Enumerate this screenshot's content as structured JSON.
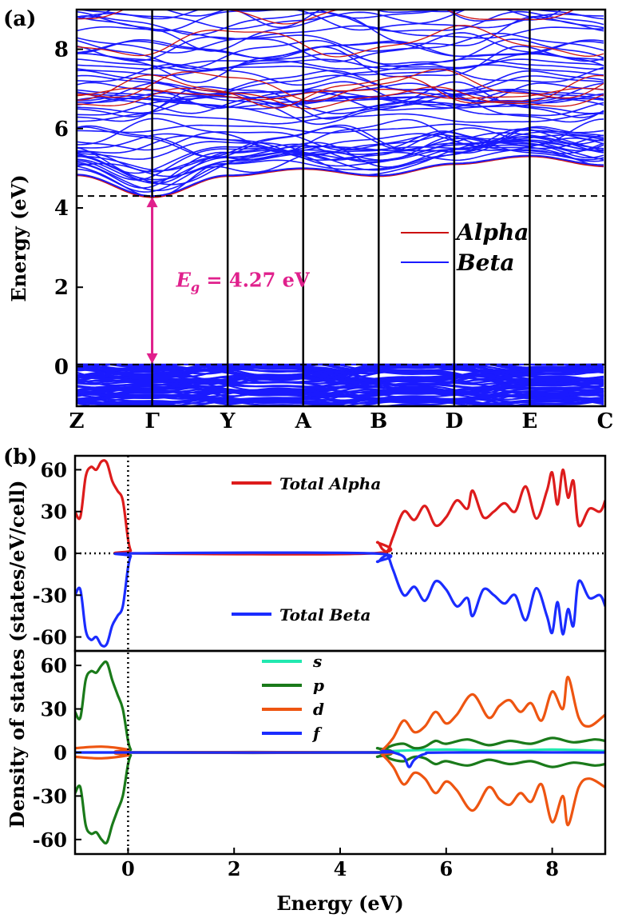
{
  "chart_data": [
    {
      "panel_label": "(a)",
      "type": "line",
      "subtype": "band-structure",
      "ylabel": "Energy (eV)",
      "ylim": [
        -1.0,
        9.0
      ],
      "y_ticks": [
        0,
        2,
        4,
        6,
        8
      ],
      "k_points": [
        "Z",
        "Γ",
        "Y",
        "A",
        "B",
        "D",
        "E",
        "C"
      ],
      "legend": [
        {
          "name": "Alpha",
          "color": "#cc1111"
        },
        {
          "name": "Beta",
          "color": "#1a1aff"
        }
      ],
      "gap": {
        "label_symbol": "E",
        "label_subscript": "g",
        "label_value": " = 4.27 eV",
        "value": 4.27,
        "vbm": 0.05,
        "cbm": 4.3,
        "k_location": "Γ",
        "color": "#e0208c"
      },
      "series": [
        {
          "name": "Alpha",
          "description": "conduction band minimum branch",
          "x": [
            0,
            1,
            2,
            3,
            4,
            5,
            6,
            7
          ],
          "values": [
            4.82,
            4.27,
            4.8,
            4.98,
            4.8,
            5.1,
            5.3,
            5.05
          ]
        },
        {
          "name": "Beta",
          "description": "conduction band minimum branch",
          "x": [
            0,
            1,
            2,
            3,
            4,
            5,
            6,
            7
          ],
          "values": [
            4.84,
            4.3,
            4.82,
            5.0,
            4.82,
            5.12,
            5.32,
            5.08
          ]
        }
      ]
    },
    {
      "panel_label": "(b)",
      "type": "line",
      "subtype": "density-of-states",
      "xlabel": "Energy (eV)",
      "ylabel": "Density of states (states/eV/cell)",
      "xlim": [
        -1.0,
        9.0
      ],
      "x_ticks": [
        0,
        2,
        4,
        6,
        8
      ],
      "subplots": [
        {
          "name": "total",
          "ylim": [
            -70,
            70
          ],
          "y_ticks": [
            -60,
            -30,
            0,
            30,
            60
          ],
          "series": [
            {
              "name": "Total Alpha",
              "color": "#dd1c1c",
              "x": [
                -1.0,
                -0.9,
                -0.8,
                -0.7,
                -0.6,
                -0.5,
                -0.4,
                -0.3,
                -0.2,
                -0.1,
                0.0,
                0.05,
                0.1,
                4.6,
                4.7,
                4.8,
                4.9,
                5.0,
                5.2,
                5.4,
                5.6,
                5.8,
                6.0,
                6.2,
                6.4,
                6.5,
                6.7,
                6.9,
                7.1,
                7.3,
                7.5,
                7.7,
                7.9,
                8.0,
                8.1,
                8.2,
                8.3,
                8.4,
                8.5,
                8.7,
                8.9,
                9.0
              ],
              "values": [
                30,
                26,
                55,
                62,
                60,
                66,
                65,
                52,
                45,
                38,
                10,
                2,
                0,
                0,
                8,
                3,
                2,
                12,
                30,
                24,
                34,
                20,
                26,
                38,
                32,
                45,
                26,
                30,
                36,
                30,
                48,
                25,
                45,
                58,
                35,
                60,
                40,
                52,
                20,
                32,
                30,
                38
              ]
            },
            {
              "name": "Total Beta",
              "color": "#1a2cff",
              "x": [
                -1.0,
                -0.9,
                -0.8,
                -0.7,
                -0.6,
                -0.5,
                -0.4,
                -0.3,
                -0.2,
                -0.1,
                0.0,
                0.05,
                0.1,
                4.6,
                4.7,
                4.8,
                4.9,
                5.0,
                5.2,
                5.4,
                5.6,
                5.8,
                6.0,
                6.2,
                6.4,
                6.5,
                6.7,
                6.9,
                7.1,
                7.3,
                7.5,
                7.7,
                7.9,
                8.0,
                8.1,
                8.2,
                8.3,
                8.4,
                8.5,
                8.7,
                8.9,
                9.0
              ],
              "values": [
                -30,
                -26,
                -55,
                -62,
                -60,
                -66,
                -65,
                -52,
                -45,
                -38,
                -10,
                -2,
                0,
                0,
                -6,
                -3,
                -2,
                -12,
                -30,
                -24,
                -34,
                -20,
                -26,
                -38,
                -32,
                -45,
                -26,
                -30,
                -36,
                -30,
                -48,
                -25,
                -45,
                -57,
                -35,
                -58,
                -40,
                -52,
                -20,
                -32,
                -30,
                -38
              ]
            }
          ]
        },
        {
          "name": "partial",
          "ylim": [
            -70,
            70
          ],
          "y_ticks": [
            -60,
            -30,
            0,
            30,
            60
          ],
          "series": [
            {
              "name": "s",
              "color": "#22e8b0",
              "x": [
                -1.0,
                0.0,
                4.7,
                5.0,
                6.0,
                7.0,
                8.0,
                9.0
              ],
              "values": [
                0,
                0,
                0,
                1,
                2,
                1,
                2,
                1
              ]
            },
            {
              "name": "p",
              "color": "#1a7a1a",
              "x": [
                -1.0,
                -0.9,
                -0.8,
                -0.7,
                -0.6,
                -0.5,
                -0.4,
                -0.3,
                -0.2,
                -0.1,
                0.0,
                0.05,
                0.1,
                4.6,
                4.7,
                4.8,
                5.0,
                5.2,
                5.4,
                5.6,
                5.8,
                6.0,
                6.4,
                6.8,
                7.2,
                7.6,
                8.0,
                8.4,
                8.8,
                9.0
              ],
              "values": [
                28,
                24,
                50,
                56,
                55,
                60,
                62,
                50,
                40,
                30,
                8,
                2,
                0,
                0,
                3,
                2,
                5,
                6,
                3,
                4,
                8,
                6,
                9,
                5,
                8,
                6,
                10,
                7,
                9,
                8
              ]
            },
            {
              "name": "p (beta)",
              "color": "#1a7a1a",
              "x": [
                -1.0,
                -0.9,
                -0.8,
                -0.7,
                -0.6,
                -0.5,
                -0.4,
                -0.3,
                -0.2,
                -0.1,
                0.0,
                0.05,
                0.1,
                4.6,
                4.7,
                4.8,
                5.0,
                5.2,
                5.4,
                5.6,
                5.8,
                6.0,
                6.4,
                6.8,
                7.2,
                7.6,
                8.0,
                8.4,
                8.8,
                9.0
              ],
              "values": [
                -28,
                -24,
                -50,
                -56,
                -55,
                -60,
                -62,
                -50,
                -40,
                -30,
                -8,
                -2,
                0,
                0,
                -3,
                -2,
                -5,
                -6,
                -3,
                -4,
                -8,
                -6,
                -9,
                -5,
                -8,
                -6,
                -10,
                -7,
                -9,
                -8
              ]
            },
            {
              "name": "d",
              "color": "#ee5511",
              "x": [
                -1.0,
                -0.5,
                0.0,
                0.1,
                4.6,
                4.8,
                5.0,
                5.2,
                5.4,
                5.6,
                5.8,
                6.0,
                6.2,
                6.5,
                6.8,
                7.0,
                7.2,
                7.4,
                7.6,
                7.8,
                8.0,
                8.2,
                8.3,
                8.5,
                8.7,
                9.0
              ],
              "values": [
                3,
                4,
                2,
                0,
                0,
                2,
                10,
                22,
                14,
                18,
                28,
                20,
                26,
                40,
                24,
                32,
                36,
                28,
                34,
                22,
                42,
                30,
                52,
                24,
                18,
                26
              ]
            },
            {
              "name": "d (beta)",
              "color": "#ee5511",
              "x": [
                -1.0,
                -0.5,
                0.0,
                0.1,
                4.6,
                4.8,
                5.0,
                5.2,
                5.4,
                5.6,
                5.8,
                6.0,
                6.2,
                6.5,
                6.8,
                7.0,
                7.2,
                7.4,
                7.6,
                7.8,
                8.0,
                8.2,
                8.3,
                8.5,
                8.7,
                9.0
              ],
              "values": [
                -3,
                -4,
                -2,
                0,
                0,
                -2,
                -10,
                -22,
                -14,
                -18,
                -28,
                -20,
                -26,
                -40,
                -24,
                -32,
                -36,
                -28,
                -34,
                -22,
                -48,
                -30,
                -50,
                -24,
                -18,
                -24
              ]
            },
            {
              "name": "f",
              "color": "#1a2cff",
              "x": [
                -1.0,
                0.0,
                4.6,
                4.8,
                5.0,
                5.2,
                5.3,
                5.4,
                5.6,
                6.0,
                9.0
              ],
              "values": [
                0,
                0,
                0,
                1,
                0,
                -3,
                -10,
                -5,
                -1,
                0,
                0
              ]
            }
          ]
        }
      ],
      "legend_total": [
        {
          "name": "Total Alpha",
          "color": "#dd1c1c"
        },
        {
          "name": "Total Beta",
          "color": "#1a2cff"
        }
      ],
      "legend_partial": [
        {
          "name": "s",
          "color": "#22e8b0"
        },
        {
          "name": "p",
          "color": "#1a7a1a"
        },
        {
          "name": "d",
          "color": "#ee5511"
        },
        {
          "name": "f",
          "color": "#1a2cff"
        }
      ]
    }
  ]
}
